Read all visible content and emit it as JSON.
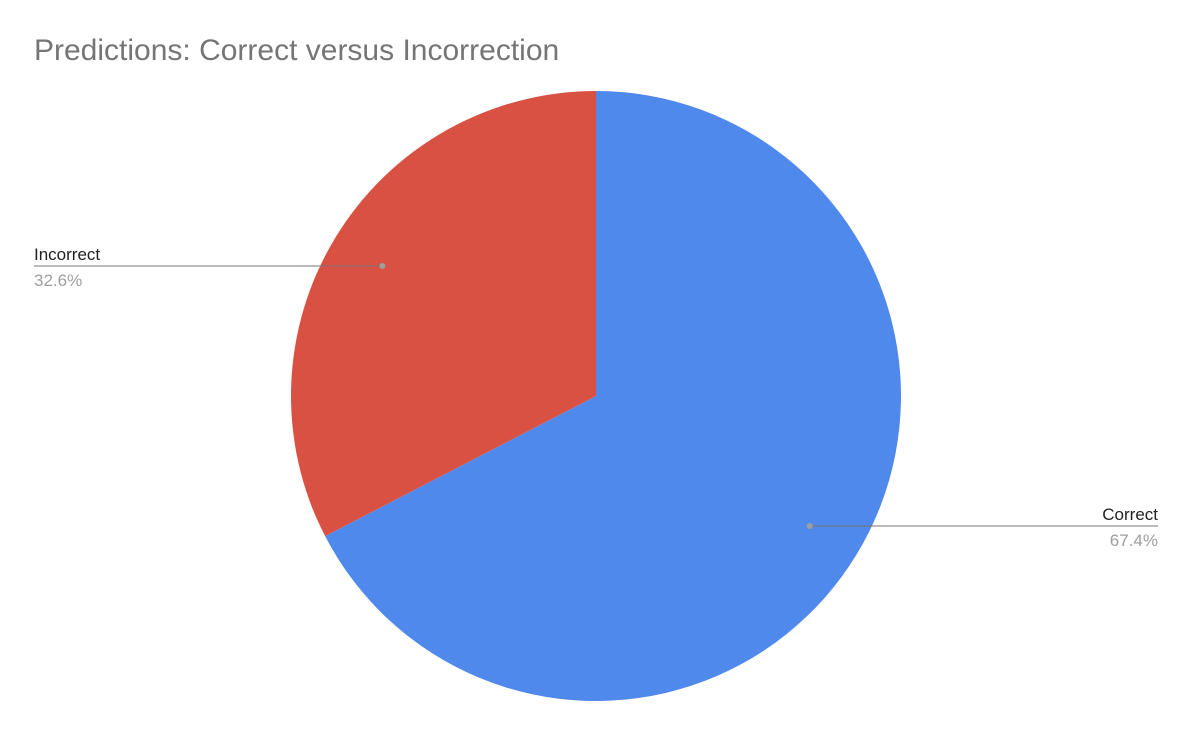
{
  "chart_data": {
    "type": "pie",
    "title": "Predictions: Correct versus Incorrection",
    "slices": [
      {
        "label": "Correct",
        "value": 67.4,
        "display": "67.4%",
        "color": "#5089EC"
      },
      {
        "label": "Incorrect",
        "value": 32.6,
        "display": "32.6%",
        "color": "#D95142"
      }
    ],
    "start_angle": "12 o'clock",
    "direction": "clockwise",
    "labels": "outside with leader lines"
  }
}
